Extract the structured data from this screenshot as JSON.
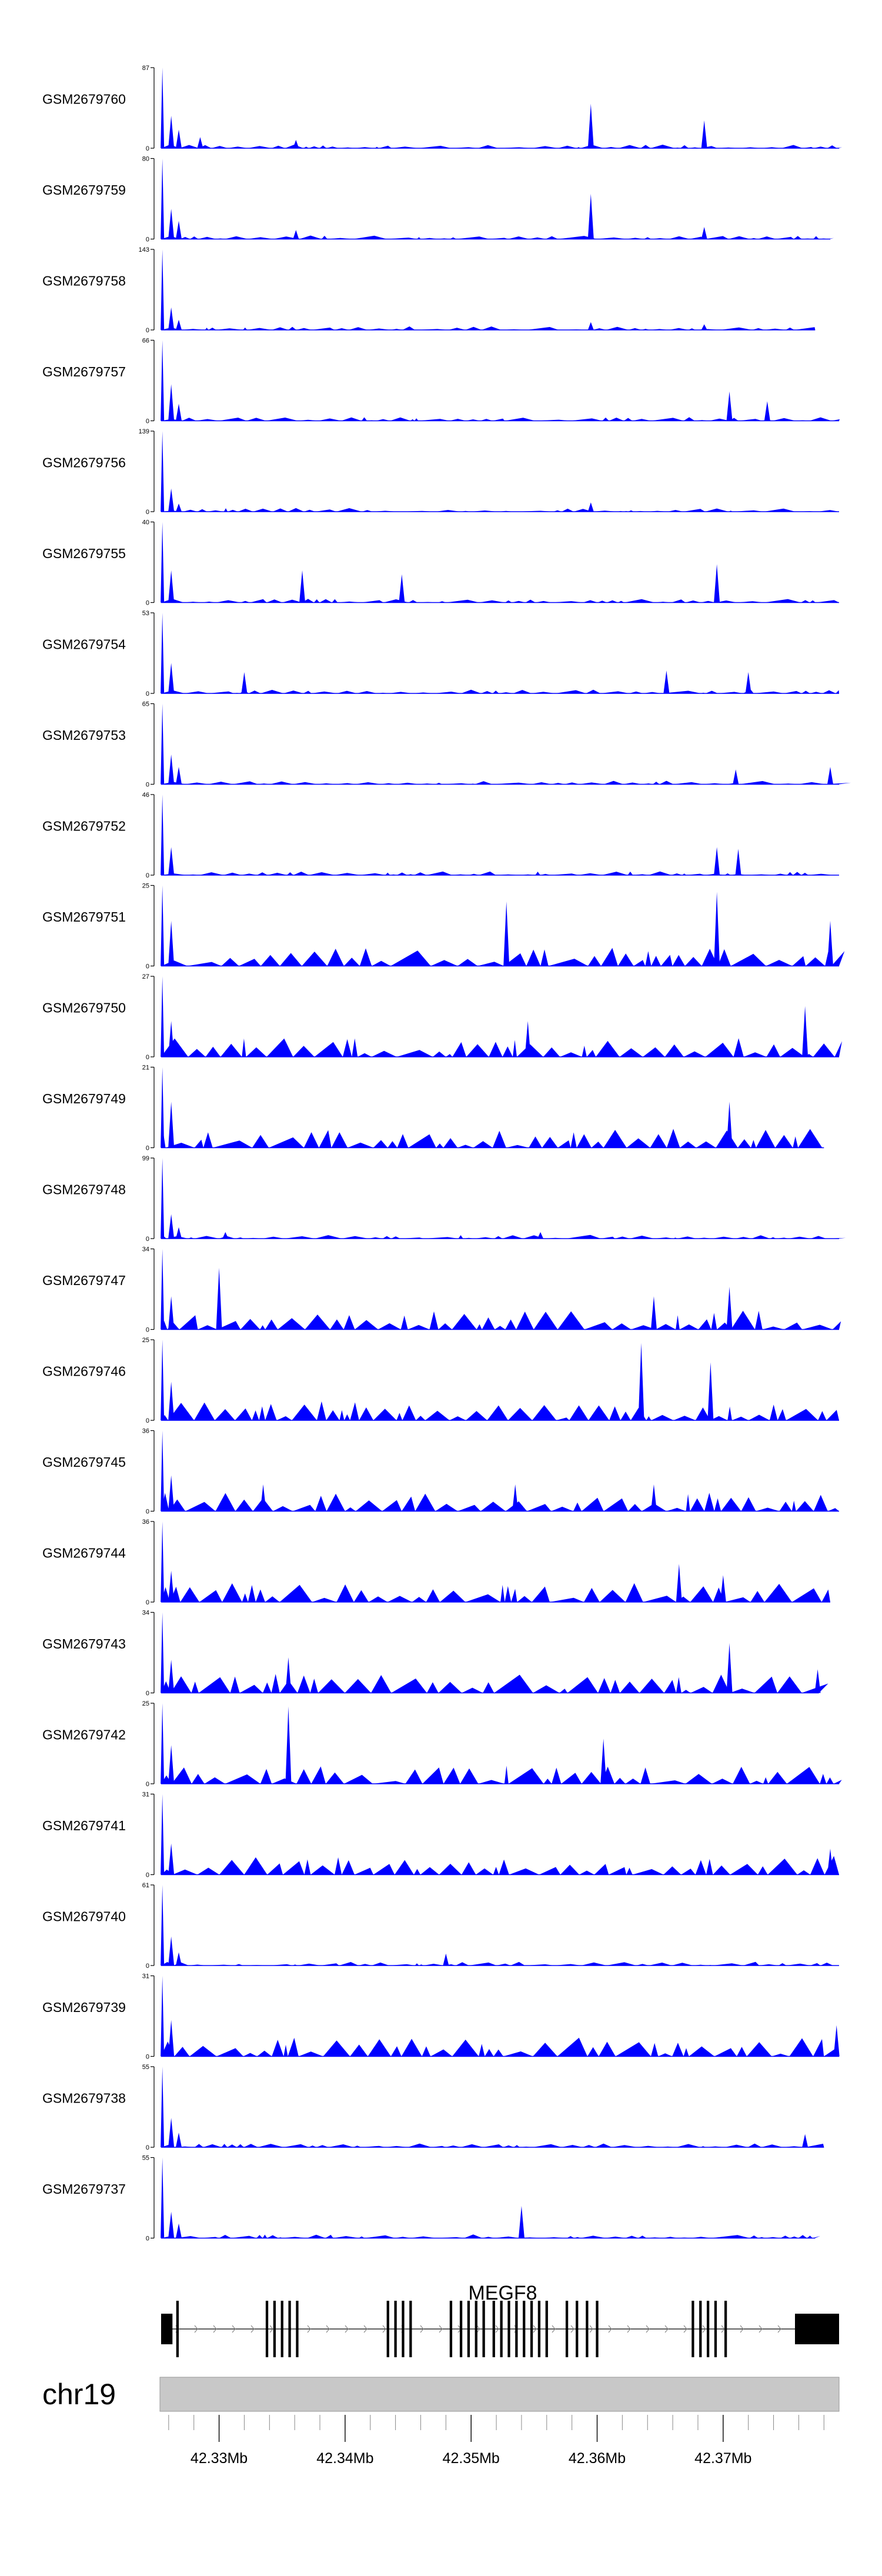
{
  "chart_data": {
    "type": "area",
    "title": "",
    "xlabel": "",
    "ylabel": "",
    "genome": {
      "chromosome": "chr19",
      "x_range_mb": [
        42.3254,
        42.3792
      ],
      "tick_labels": [
        "42.33Mb",
        "42.34Mb",
        "42.35Mb",
        "42.36Mb",
        "42.37Mb"
      ],
      "tick_values_mb": [
        42.33,
        42.34,
        42.35,
        42.36,
        42.37
      ],
      "minor_tick_step_mb": 0.002
    },
    "gene": {
      "name": "MEGF8",
      "strand": "+",
      "start_mb": 42.3254,
      "end_mb": 42.3792,
      "exons_mb": [
        [
          42.3254,
          42.3263
        ],
        [
          42.3266,
          42.3268
        ],
        [
          42.3337,
          42.3339
        ],
        [
          42.3343,
          42.3345
        ],
        [
          42.3349,
          42.3351
        ],
        [
          42.3355,
          42.3357
        ],
        [
          42.3361,
          42.3363
        ],
        [
          42.3433,
          42.3435
        ],
        [
          42.3439,
          42.3441
        ],
        [
          42.3445,
          42.3447
        ],
        [
          42.3451,
          42.3453
        ],
        [
          42.3483,
          42.3485
        ],
        [
          42.3491,
          42.3493
        ],
        [
          42.3497,
          42.3499
        ],
        [
          42.3503,
          42.3505
        ],
        [
          42.3509,
          42.3511
        ],
        [
          42.3517,
          42.3519
        ],
        [
          42.3523,
          42.3525
        ],
        [
          42.3529,
          42.3531
        ],
        [
          42.3535,
          42.3537
        ],
        [
          42.3541,
          42.3543
        ],
        [
          42.3547,
          42.3549
        ],
        [
          42.3553,
          42.3555
        ],
        [
          42.3559,
          42.3561
        ],
        [
          42.3575,
          42.3577
        ],
        [
          42.3583,
          42.3585
        ],
        [
          42.3591,
          42.3593
        ],
        [
          42.3599,
          42.3601
        ],
        [
          42.3675,
          42.3677
        ],
        [
          42.3681,
          42.3683
        ],
        [
          42.3687,
          42.3689
        ],
        [
          42.3693,
          42.3695
        ],
        [
          42.3701,
          42.3703
        ],
        [
          42.3757,
          42.3792
        ]
      ]
    },
    "series": [
      {
        "name": "GSM2679760",
        "ymax": 87,
        "spikes": [
          [
            42.3255,
            87
          ],
          [
            42.3262,
            35
          ],
          [
            42.3268,
            20
          ],
          [
            42.3285,
            12
          ],
          [
            42.3361,
            9
          ],
          [
            42.3595,
            48
          ],
          [
            42.3685,
            30
          ]
        ],
        "extent_mb": 42.3792
      },
      {
        "name": "GSM2679759",
        "ymax": 80,
        "spikes": [
          [
            42.3255,
            80
          ],
          [
            42.3262,
            30
          ],
          [
            42.3268,
            18
          ],
          [
            42.3361,
            9
          ],
          [
            42.3595,
            45
          ],
          [
            42.3685,
            12
          ]
        ],
        "extent_mb": 42.3785
      },
      {
        "name": "GSM2679758",
        "ymax": 143,
        "spikes": [
          [
            42.3255,
            143
          ],
          [
            42.3262,
            40
          ],
          [
            42.3268,
            18
          ],
          [
            42.3595,
            14
          ],
          [
            42.3685,
            10
          ]
        ],
        "extent_mb": 42.3773
      },
      {
        "name": "GSM2679757",
        "ymax": 66,
        "spikes": [
          [
            42.3255,
            66
          ],
          [
            42.3262,
            30
          ],
          [
            42.3268,
            14
          ],
          [
            42.3705,
            24
          ],
          [
            42.3735,
            16
          ]
        ],
        "extent_mb": 42.3792
      },
      {
        "name": "GSM2679756",
        "ymax": 139,
        "spikes": [
          [
            42.3255,
            139
          ],
          [
            42.3262,
            40
          ],
          [
            42.3268,
            14
          ],
          [
            42.3595,
            16
          ]
        ],
        "extent_mb": 42.3792
      },
      {
        "name": "GSM2679755",
        "ymax": 40,
        "spikes": [
          [
            42.3255,
            40
          ],
          [
            42.3262,
            16
          ],
          [
            42.3366,
            16
          ],
          [
            42.3445,
            14
          ],
          [
            42.3695,
            19
          ]
        ],
        "extent_mb": 42.3792
      },
      {
        "name": "GSM2679754",
        "ymax": 53,
        "spikes": [
          [
            42.3255,
            53
          ],
          [
            42.3262,
            20
          ],
          [
            42.332,
            14
          ],
          [
            42.3655,
            15
          ],
          [
            42.372,
            14
          ]
        ],
        "extent_mb": 42.3792
      },
      {
        "name": "GSM2679753",
        "ymax": 65,
        "spikes": [
          [
            42.3255,
            65
          ],
          [
            42.3262,
            24
          ],
          [
            42.3268,
            14
          ],
          [
            42.371,
            12
          ],
          [
            42.3785,
            14
          ]
        ],
        "extent_mb": 42.3792
      },
      {
        "name": "GSM2679752",
        "ymax": 46,
        "spikes": [
          [
            42.3255,
            46
          ],
          [
            42.3262,
            16
          ],
          [
            42.3695,
            16
          ],
          [
            42.3712,
            15
          ]
        ],
        "extent_mb": 42.3792
      },
      {
        "name": "GSM2679751",
        "ymax": 25,
        "spikes": [
          [
            42.3255,
            25
          ],
          [
            42.3262,
            14
          ],
          [
            42.3528,
            20
          ],
          [
            42.3695,
            23
          ],
          [
            42.3785,
            14
          ]
        ],
        "extent_mb": 42.3792
      },
      {
        "name": "GSM2679750",
        "ymax": 27,
        "spikes": [
          [
            42.3255,
            27
          ],
          [
            42.3262,
            12
          ],
          [
            42.3545,
            12
          ],
          [
            42.3765,
            17
          ]
        ],
        "extent_mb": 42.3792
      },
      {
        "name": "GSM2679749",
        "ymax": 21,
        "spikes": [
          [
            42.3255,
            21
          ],
          [
            42.3262,
            12
          ],
          [
            42.3705,
            12
          ]
        ],
        "extent_mb": 42.378
      },
      {
        "name": "GSM2679748",
        "ymax": 99,
        "spikes": [
          [
            42.3255,
            99
          ],
          [
            42.3262,
            30
          ],
          [
            42.3268,
            14
          ],
          [
            42.3305,
            8
          ],
          [
            42.3555,
            8
          ]
        ],
        "extent_mb": 42.3792
      },
      {
        "name": "GSM2679747",
        "ymax": 34,
        "spikes": [
          [
            42.3255,
            34
          ],
          [
            42.3262,
            14
          ],
          [
            42.33,
            26
          ],
          [
            42.3645,
            14
          ],
          [
            42.3705,
            18
          ]
        ],
        "extent_mb": 42.3792
      },
      {
        "name": "GSM2679746",
        "ymax": 25,
        "spikes": [
          [
            42.3255,
            25
          ],
          [
            42.3262,
            12
          ],
          [
            42.3635,
            24
          ],
          [
            42.369,
            18
          ]
        ],
        "extent_mb": 42.3792
      },
      {
        "name": "GSM2679745",
        "ymax": 36,
        "spikes": [
          [
            42.3255,
            36
          ],
          [
            42.3262,
            16
          ],
          [
            42.3335,
            12
          ],
          [
            42.3535,
            12
          ],
          [
            42.3645,
            12
          ]
        ],
        "extent_mb": 42.3792
      },
      {
        "name": "GSM2679744",
        "ymax": 36,
        "spikes": [
          [
            42.3255,
            36
          ],
          [
            42.3262,
            14
          ],
          [
            42.3665,
            17
          ],
          [
            42.37,
            12
          ]
        ],
        "extent_mb": 42.3785
      },
      {
        "name": "GSM2679743",
        "ymax": 34,
        "spikes": [
          [
            42.3255,
            34
          ],
          [
            42.3262,
            14
          ],
          [
            42.3355,
            15
          ],
          [
            42.3705,
            21
          ],
          [
            42.3775,
            10
          ]
        ],
        "extent_mb": 42.3776
      },
      {
        "name": "GSM2679742",
        "ymax": 25,
        "spikes": [
          [
            42.3255,
            25
          ],
          [
            42.3262,
            12
          ],
          [
            42.3355,
            24
          ],
          [
            42.3605,
            14
          ]
        ],
        "extent_mb": 42.3792
      },
      {
        "name": "GSM2679741",
        "ymax": 31,
        "spikes": [
          [
            42.3255,
            31
          ],
          [
            42.3262,
            12
          ],
          [
            42.3785,
            10
          ]
        ],
        "extent_mb": 42.3792
      },
      {
        "name": "GSM2679740",
        "ymax": 61,
        "spikes": [
          [
            42.3255,
            61
          ],
          [
            42.3262,
            22
          ],
          [
            42.3268,
            10
          ],
          [
            42.348,
            9
          ]
        ],
        "extent_mb": 42.3792
      },
      {
        "name": "GSM2679739",
        "ymax": 31,
        "spikes": [
          [
            42.3255,
            31
          ],
          [
            42.3262,
            14
          ],
          [
            42.379,
            12
          ]
        ],
        "extent_mb": 42.3792
      },
      {
        "name": "GSM2679738",
        "ymax": 55,
        "spikes": [
          [
            42.3255,
            55
          ],
          [
            42.3262,
            20
          ],
          [
            42.3268,
            10
          ],
          [
            42.3765,
            9
          ]
        ],
        "extent_mb": 42.378
      },
      {
        "name": "GSM2679737",
        "ymax": 55,
        "spikes": [
          [
            42.3255,
            55
          ],
          [
            42.3262,
            18
          ],
          [
            42.3268,
            10
          ],
          [
            42.354,
            22
          ]
        ],
        "extent_mb": 42.3773
      }
    ]
  },
  "colors": {
    "coverage_fill": "#0000ff",
    "gene_model": "#000000",
    "ideogram_fill": "#c8c8c8",
    "ideogram_border": "#999999",
    "axis": "#000000"
  }
}
